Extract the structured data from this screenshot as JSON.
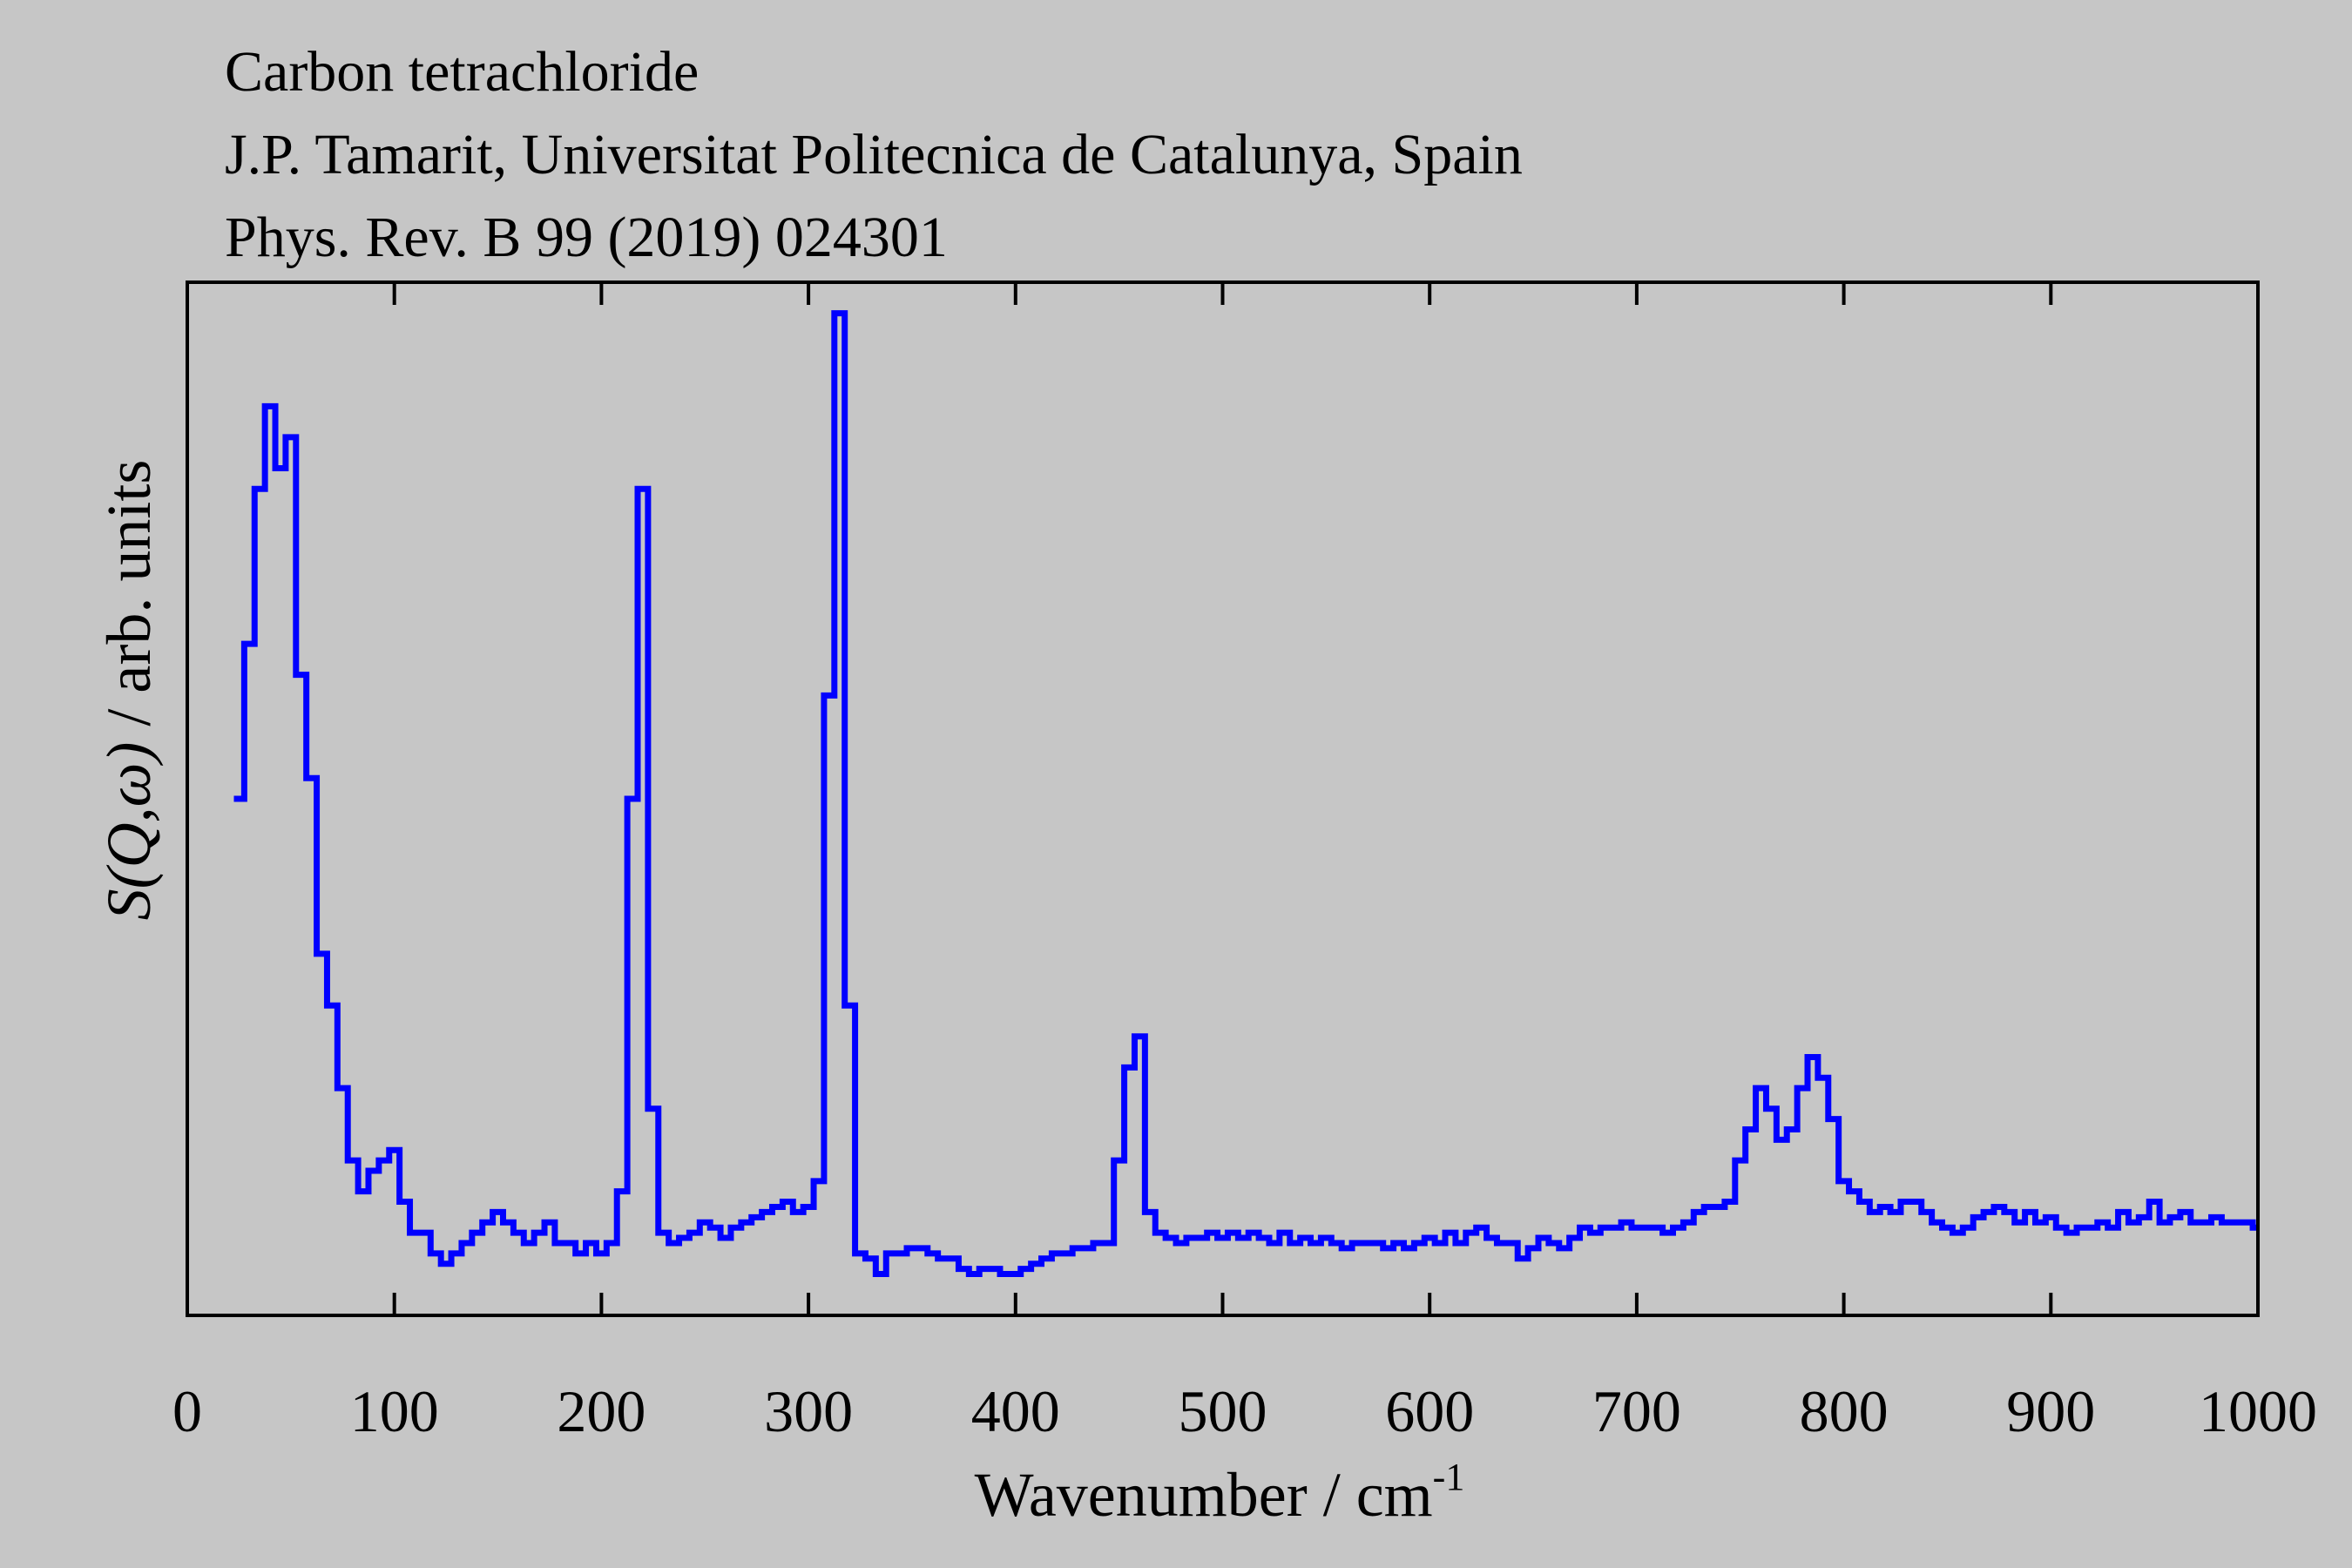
{
  "titles": [
    "Carbon tetrachloride",
    "J.P. Tamarit, Universitat Politecnica de Catalunya, Spain",
    "Phys. Rev. B 99 (2019) 024301"
  ],
  "chart_data": {
    "type": "line",
    "style": "step",
    "title": "Carbon tetrachloride",
    "xlabel": "Wavenumber / cm",
    "xlabel_sup": "-1",
    "ylabel_italic": "S(Q,ω)",
    "ylabel_rest": " / arb. units",
    "xlim": [
      0,
      1000
    ],
    "ylim": [
      0,
      1
    ],
    "xticks": [
      0,
      100,
      200,
      300,
      400,
      500,
      600,
      700,
      800,
      900,
      1000
    ],
    "grid": false,
    "line_color": "#0000FF",
    "x": [
      25,
      30,
      35,
      40,
      45,
      50,
      55,
      60,
      65,
      70,
      75,
      80,
      85,
      90,
      95,
      100,
      105,
      110,
      115,
      120,
      125,
      130,
      135,
      140,
      145,
      150,
      155,
      160,
      165,
      170,
      175,
      180,
      185,
      190,
      195,
      200,
      205,
      210,
      215,
      220,
      225,
      230,
      235,
      240,
      245,
      250,
      255,
      260,
      265,
      270,
      275,
      280,
      285,
      290,
      295,
      300,
      305,
      310,
      315,
      320,
      325,
      330,
      335,
      340,
      345,
      350,
      355,
      360,
      365,
      370,
      375,
      380,
      385,
      390,
      395,
      400,
      405,
      410,
      415,
      420,
      425,
      430,
      435,
      440,
      445,
      450,
      455,
      460,
      465,
      470,
      475,
      480,
      485,
      490,
      495,
      500,
      505,
      510,
      515,
      520,
      525,
      530,
      535,
      540,
      545,
      550,
      555,
      560,
      565,
      570,
      575,
      580,
      585,
      590,
      595,
      600,
      605,
      610,
      615,
      620,
      625,
      630,
      635,
      640,
      645,
      650,
      655,
      660,
      665,
      670,
      675,
      680,
      685,
      690,
      695,
      700,
      705,
      710,
      715,
      720,
      725,
      730,
      735,
      740,
      745,
      750,
      755,
      760,
      765,
      770,
      775,
      780,
      785,
      790,
      795,
      800,
      805,
      810,
      815,
      820,
      825,
      830,
      835,
      840,
      845,
      850,
      855,
      860,
      865,
      870,
      875,
      880,
      885,
      890,
      895,
      900,
      905,
      910,
      915,
      920,
      925,
      930,
      935,
      940,
      945,
      950,
      955,
      960,
      965,
      970,
      975,
      980,
      985,
      990,
      995,
      1000
    ],
    "y": [
      0.5,
      0.65,
      0.8,
      0.88,
      0.82,
      0.85,
      0.62,
      0.52,
      0.35,
      0.3,
      0.22,
      0.15,
      0.12,
      0.14,
      0.15,
      0.16,
      0.11,
      0.08,
      0.08,
      0.06,
      0.05,
      0.06,
      0.07,
      0.08,
      0.09,
      0.1,
      0.09,
      0.08,
      0.07,
      0.08,
      0.09,
      0.07,
      0.07,
      0.06,
      0.07,
      0.06,
      0.07,
      0.12,
      0.5,
      0.8,
      0.2,
      0.08,
      0.07,
      0.075,
      0.08,
      0.09,
      0.085,
      0.075,
      0.085,
      0.09,
      0.095,
      0.1,
      0.105,
      0.11,
      0.1,
      0.105,
      0.13,
      0.6,
      0.97,
      0.3,
      0.06,
      0.055,
      0.04,
      0.06,
      0.06,
      0.065,
      0.065,
      0.06,
      0.055,
      0.055,
      0.045,
      0.04,
      0.045,
      0.045,
      0.04,
      0.04,
      0.045,
      0.05,
      0.055,
      0.06,
      0.06,
      0.065,
      0.065,
      0.07,
      0.07,
      0.15,
      0.24,
      0.27,
      0.1,
      0.08,
      0.075,
      0.07,
      0.075,
      0.075,
      0.08,
      0.075,
      0.08,
      0.075,
      0.08,
      0.075,
      0.07,
      0.08,
      0.07,
      0.075,
      0.07,
      0.075,
      0.07,
      0.065,
      0.07,
      0.07,
      0.07,
      0.065,
      0.07,
      0.065,
      0.07,
      0.075,
      0.07,
      0.08,
      0.07,
      0.08,
      0.085,
      0.075,
      0.07,
      0.07,
      0.055,
      0.065,
      0.075,
      0.07,
      0.065,
      0.075,
      0.085,
      0.08,
      0.085,
      0.085,
      0.09,
      0.085,
      0.085,
      0.085,
      0.08,
      0.085,
      0.09,
      0.1,
      0.105,
      0.105,
      0.11,
      0.15,
      0.18,
      0.22,
      0.2,
      0.17,
      0.18,
      0.22,
      0.25,
      0.23,
      0.19,
      0.13,
      0.12,
      0.11,
      0.1,
      0.105,
      0.1,
      0.11,
      0.11,
      0.1,
      0.09,
      0.085,
      0.08,
      0.085,
      0.095,
      0.1,
      0.105,
      0.1,
      0.09,
      0.1,
      0.09,
      0.095,
      0.085,
      0.08,
      0.085,
      0.085,
      0.09,
      0.085,
      0.1,
      0.09,
      0.095,
      0.11,
      0.09,
      0.095,
      0.1,
      0.09,
      0.09,
      0.095,
      0.09,
      0.09,
      0.09,
      0.085
    ]
  }
}
